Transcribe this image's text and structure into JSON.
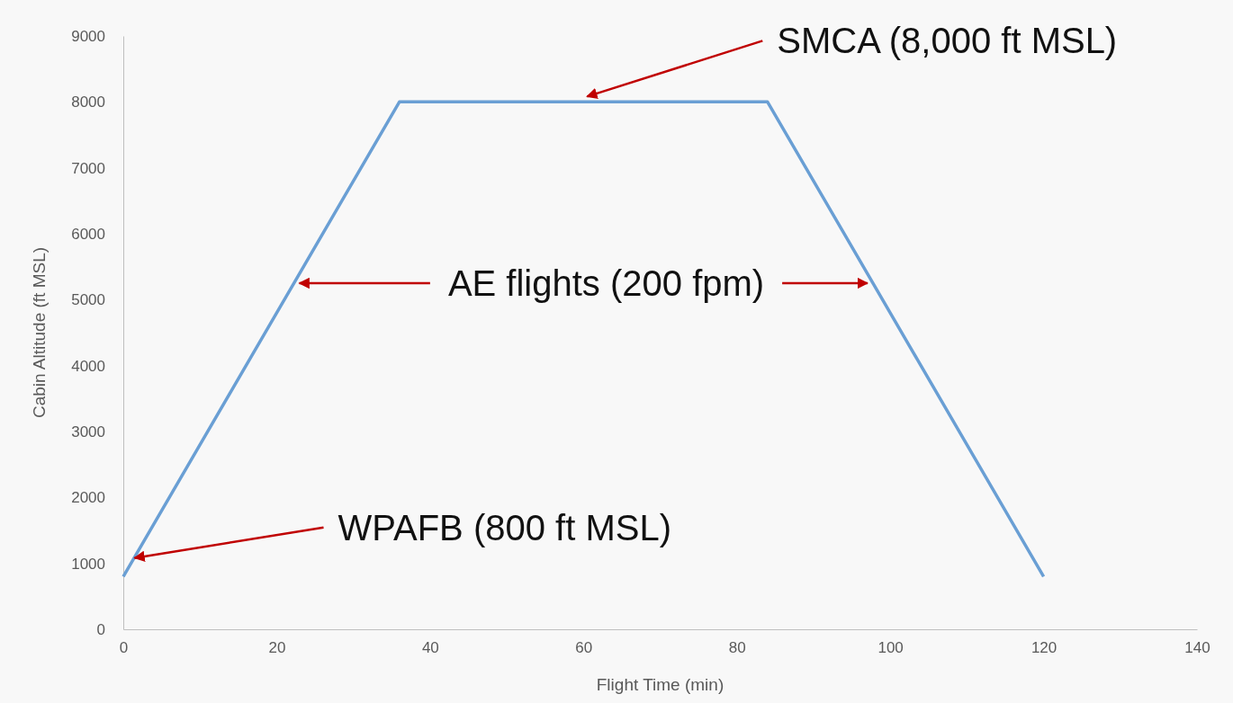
{
  "chart_data": {
    "type": "line",
    "xlabel": "Flight Time (min)",
    "ylabel": "Cabin Altitude (ft MSL)",
    "x": [
      0,
      36,
      84,
      120
    ],
    "series": [
      {
        "color": "#6a9fd4",
        "values": [
          800,
          8000,
          8000,
          800
        ]
      }
    ],
    "xlim": [
      0,
      140
    ],
    "xticks": [
      0,
      20,
      40,
      60,
      80,
      100,
      120,
      140
    ],
    "ylim": [
      0,
      9000
    ],
    "yticks": [
      0,
      1000,
      2000,
      3000,
      4000,
      5000,
      6000,
      7000,
      8000,
      9000
    ],
    "grid": false,
    "marker": "none",
    "line_style": "solid",
    "annotations": [
      {
        "text": "SMCA (8,000 ft MSL)",
        "x": 60,
        "y": 8000
      },
      {
        "text": "AE flights (200 fpm)",
        "x": 22.25,
        "y": 5250
      },
      {
        "text": "WPAFB (800 ft MSL)",
        "x": 1,
        "y": 1000
      }
    ]
  }
}
